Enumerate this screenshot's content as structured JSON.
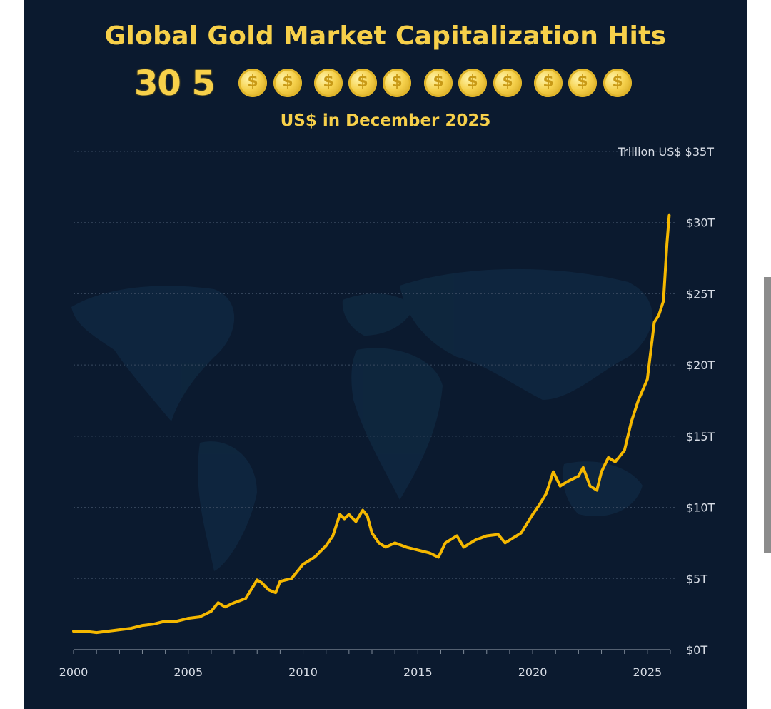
{
  "header": {
    "title": "Global Gold Market Capitalization Hits",
    "amount_prefix": "30 5",
    "subtitle": "US$ in December 2025"
  },
  "decor": {
    "coin_icon": "gold-coin-icon",
    "coin_count": 11,
    "background": "world-map"
  },
  "colors": {
    "background": "#0b1a2f",
    "accent": "#f7d04a",
    "line": "#f5b800",
    "axis_text": "#d8dde6",
    "grid": "#3a4a60"
  },
  "chart_data": {
    "type": "line",
    "title": "Global Gold Market Capitalization Hits",
    "ylabel": "Trillion US$",
    "xlabel": "",
    "xlim": [
      2000,
      2026
    ],
    "ylim": [
      0,
      35
    ],
    "x_ticks": [
      2000,
      2005,
      2010,
      2015,
      2020,
      2025
    ],
    "y_ticks": [
      0,
      5,
      10,
      15,
      20,
      25,
      30,
      35
    ],
    "y_tick_labels": [
      "$0T",
      "$5T",
      "$10T",
      "$15T",
      "$20T",
      "$25T",
      "$30T",
      "$35T"
    ],
    "y_top_label": "Trillion US$ $35T",
    "series": [
      {
        "name": "Gold market cap",
        "x": [
          2000,
          2000.5,
          2001,
          2001.5,
          2002,
          2002.5,
          2003,
          2003.5,
          2004,
          2004.5,
          2005,
          2005.5,
          2006,
          2006.3,
          2006.6,
          2007,
          2007.5,
          2008,
          2008.2,
          2008.5,
          2008.8,
          2009,
          2009.5,
          2010,
          2010.5,
          2011,
          2011.3,
          2011.6,
          2011.8,
          2012,
          2012.3,
          2012.6,
          2012.8,
          2013,
          2013.3,
          2013.6,
          2014,
          2014.5,
          2015,
          2015.5,
          2015.9,
          2016.2,
          2016.5,
          2016.7,
          2017,
          2017.5,
          2018,
          2018.5,
          2018.8,
          2019,
          2019.5,
          2020,
          2020.3,
          2020.6,
          2020.9,
          2021.2,
          2021.5,
          2022,
          2022.2,
          2022.5,
          2022.8,
          2023,
          2023.3,
          2023.6,
          2024,
          2024.3,
          2024.6,
          2025,
          2025.3,
          2025.5,
          2025.7,
          2025.85,
          2025.95
        ],
        "values": [
          1.3,
          1.3,
          1.2,
          1.3,
          1.4,
          1.5,
          1.7,
          1.8,
          2.0,
          2.0,
          2.2,
          2.3,
          2.7,
          3.3,
          3.0,
          3.3,
          3.6,
          4.9,
          4.7,
          4.2,
          4.0,
          4.8,
          5.0,
          6.0,
          6.5,
          7.3,
          8.0,
          9.5,
          9.2,
          9.5,
          9.0,
          9.8,
          9.4,
          8.2,
          7.5,
          7.2,
          7.5,
          7.2,
          7.0,
          6.8,
          6.5,
          7.5,
          7.8,
          8.0,
          7.2,
          7.7,
          8.0,
          8.1,
          7.5,
          7.7,
          8.2,
          9.5,
          10.2,
          11.0,
          12.5,
          11.5,
          11.8,
          12.2,
          12.8,
          11.5,
          11.2,
          12.5,
          13.5,
          13.2,
          14.0,
          16.0,
          17.5,
          19.0,
          23.0,
          23.5,
          24.5,
          28.5,
          30.5
        ]
      }
    ]
  }
}
